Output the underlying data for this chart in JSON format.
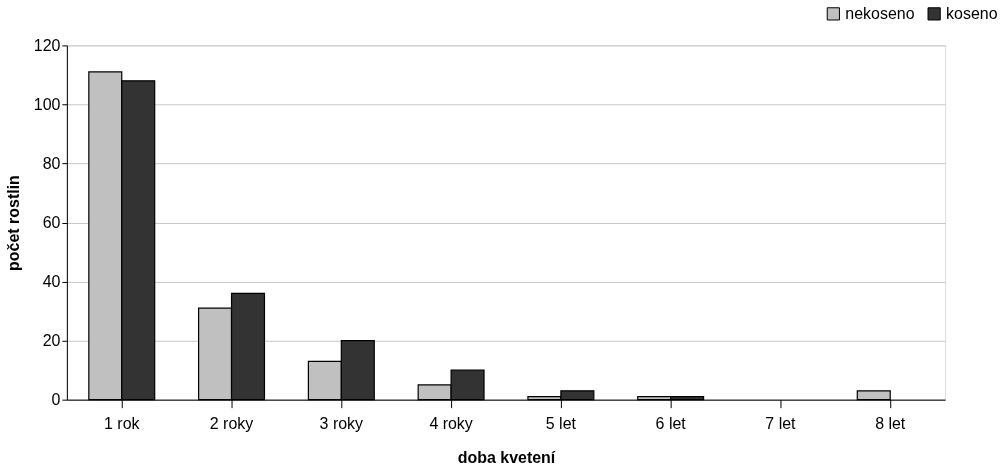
{
  "chart_data": {
    "type": "bar",
    "xlabel": "doba kvetení",
    "ylabel": "počet rostlin",
    "categories": [
      "1 rok",
      "2 roky",
      "3 roky",
      "4 roky",
      "5 let",
      "6 let",
      "7 let",
      "8 let"
    ],
    "series": [
      {
        "name": "nekoseno",
        "color": "#c0c0c0",
        "values": [
          111,
          31,
          13,
          5,
          1,
          1,
          0,
          3
        ]
      },
      {
        "name": "koseno",
        "color": "#333333",
        "values": [
          108,
          36,
          20,
          10,
          3,
          1,
          0,
          0
        ]
      }
    ],
    "ylim": [
      0,
      120
    ],
    "yticks": [
      0,
      20,
      40,
      60,
      80,
      100,
      120
    ],
    "grid": "y",
    "legend": "top right"
  }
}
